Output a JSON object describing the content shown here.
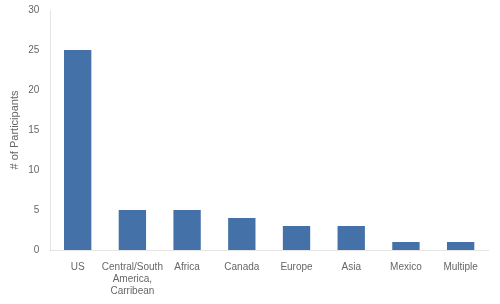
{
  "chart_data": {
    "type": "bar",
    "categories": [
      "US",
      "Central/South\nAmerica,\nCarribean",
      "Africa",
      "Canada",
      "Europe",
      "Asia",
      "Mexico",
      "Multiple"
    ],
    "values": [
      25,
      5,
      5,
      4,
      3,
      3,
      1,
      1
    ],
    "color": "#4472a8",
    "ylabel": "# of Participants",
    "ylim": [
      0,
      30
    ],
    "yticks": [
      0,
      5,
      10,
      15,
      20,
      25,
      30
    ],
    "grid": false
  }
}
